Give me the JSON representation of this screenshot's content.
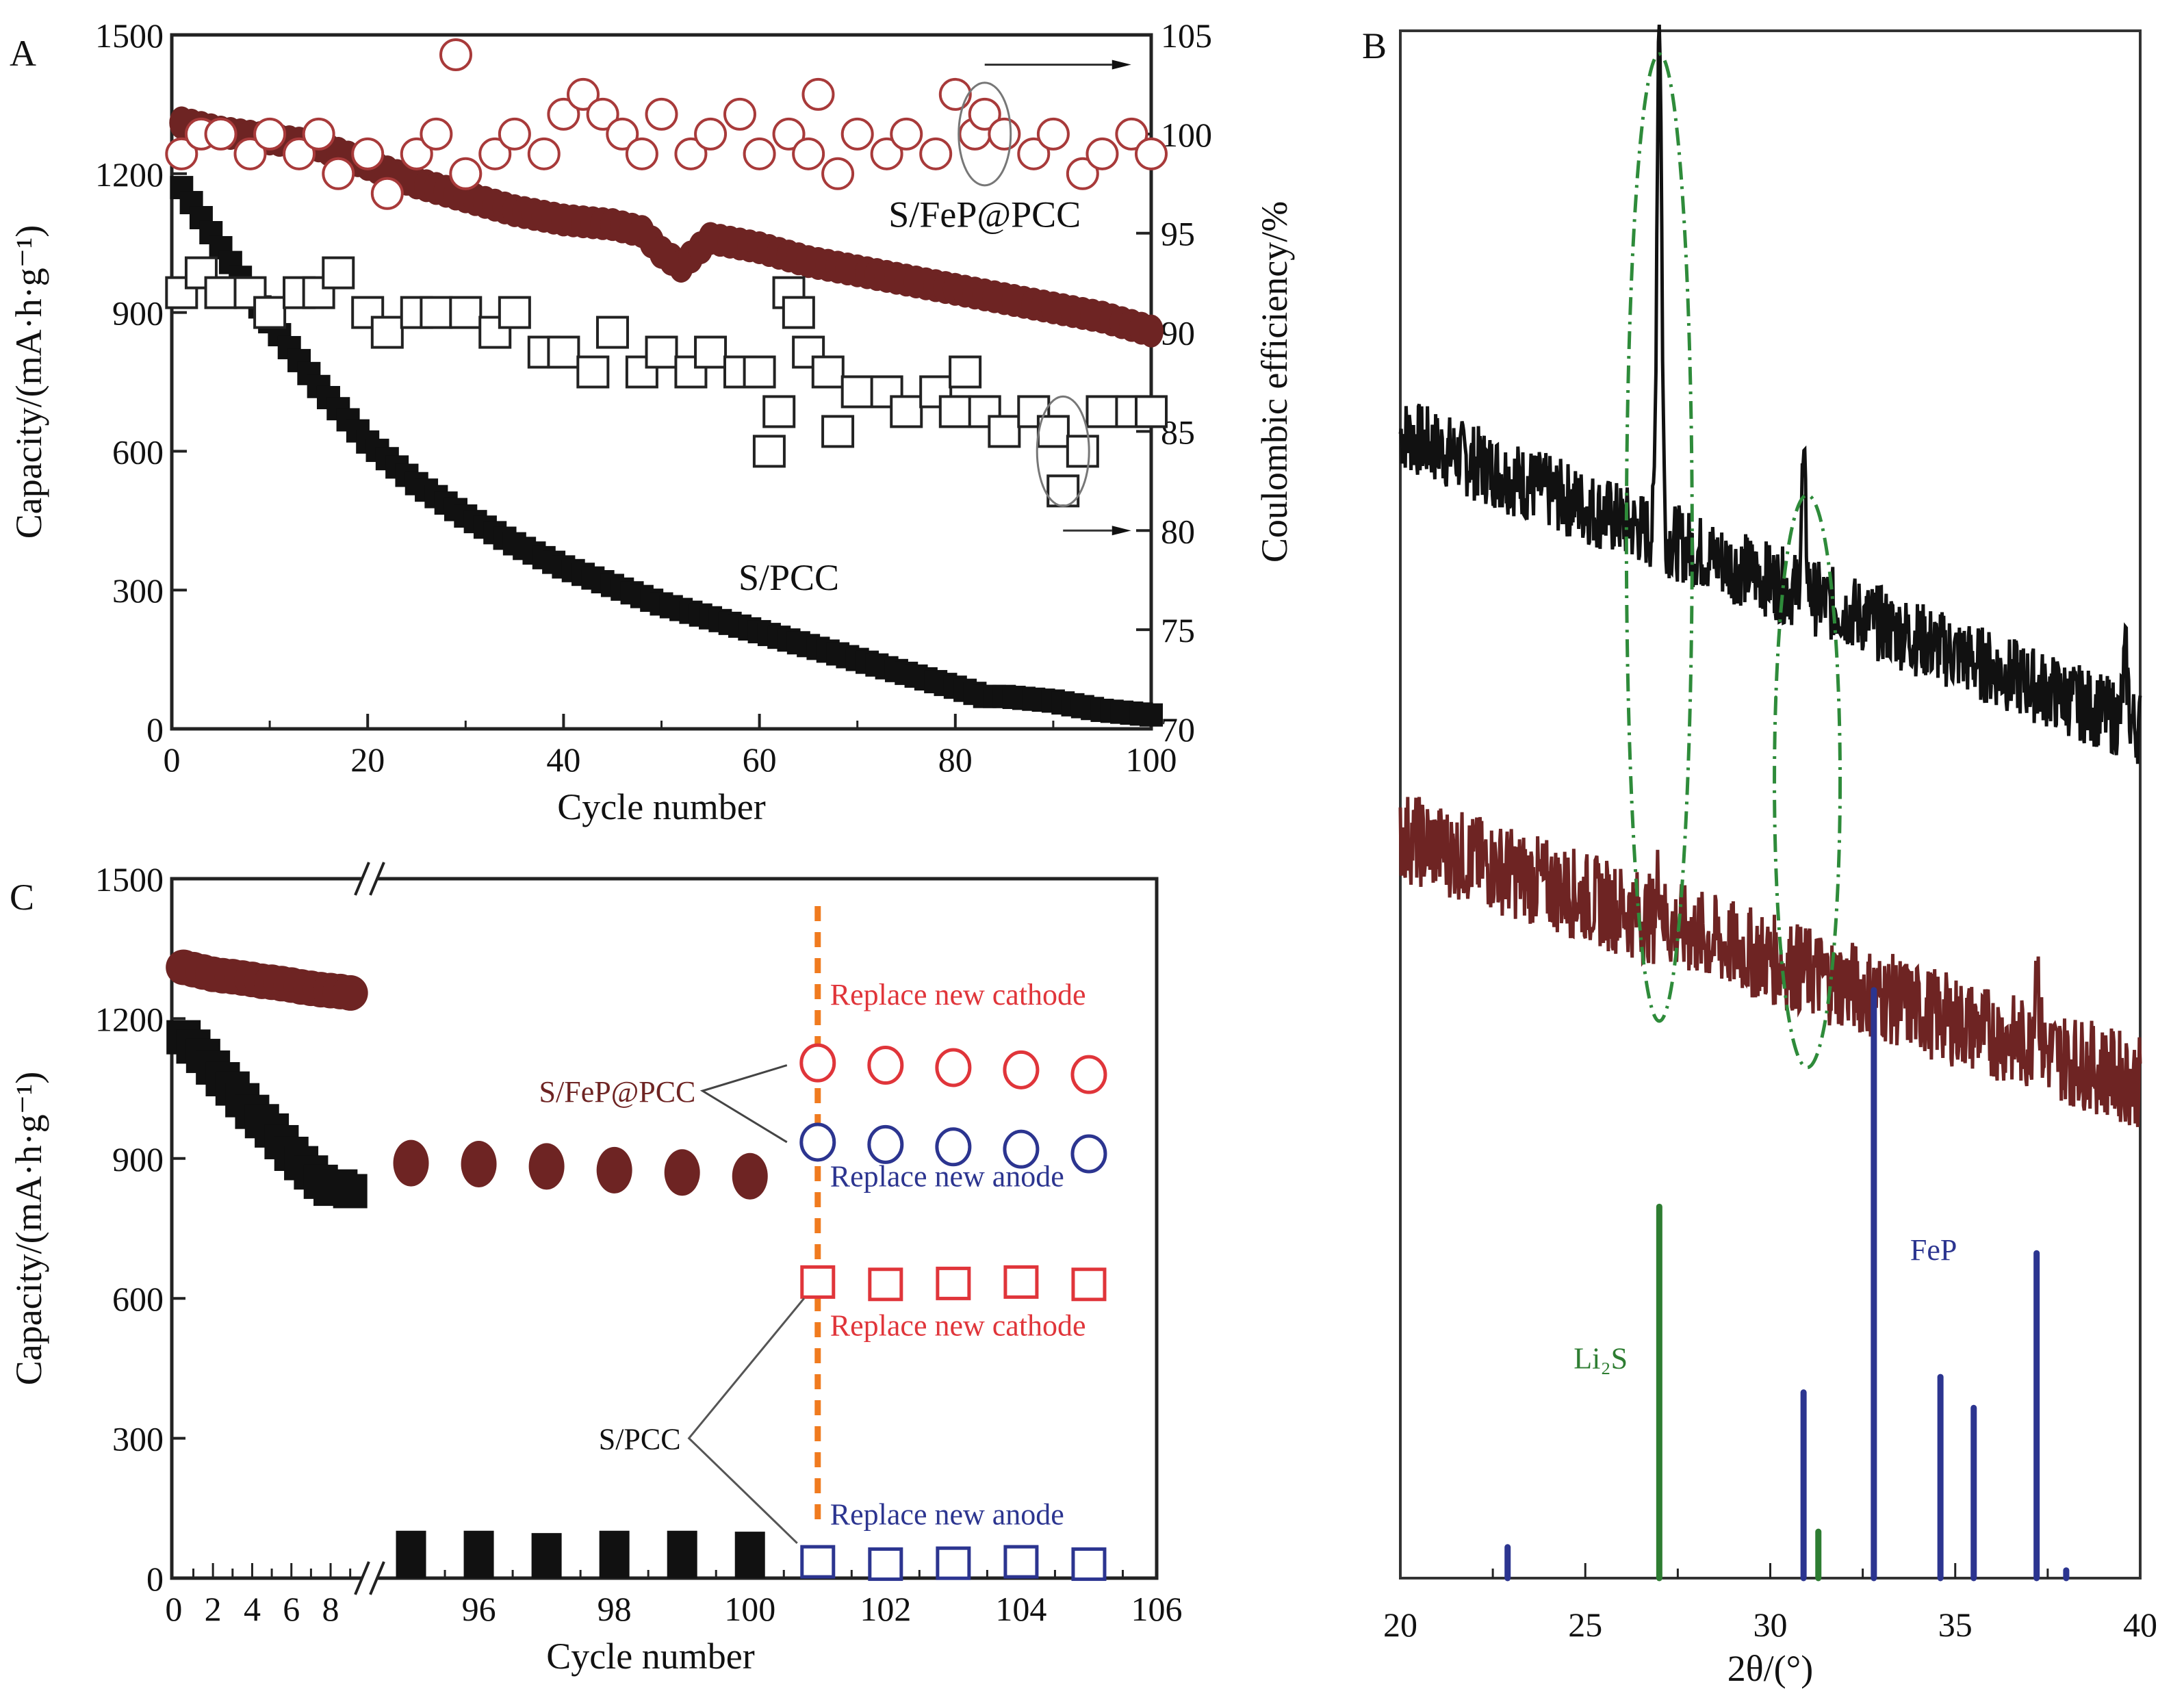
{
  "figure": {
    "panels": [
      "A",
      "B",
      "C"
    ]
  },
  "chart_data": [
    {
      "id": "A",
      "panel_label": "A",
      "type": "scatter",
      "xlabel": "Cycle number",
      "ylabel": "Capacity/(mA·h·g⁻¹)",
      "ylabel_right": "Coulombic efficiency/%",
      "xlim": [
        0,
        100
      ],
      "ylim": [
        0,
        1500
      ],
      "ylim_right": [
        70,
        105
      ],
      "x_ticks": [
        0,
        20,
        40,
        60,
        80,
        100
      ],
      "y_ticks": [
        0,
        300,
        600,
        900,
        1200,
        1500
      ],
      "y_ticks_right": [
        70,
        75,
        80,
        85,
        90,
        95,
        100,
        105
      ],
      "grid": false,
      "annotations": [
        {
          "text": "S/FeP@PCC",
          "color": "#6e2423",
          "x": 83,
          "y": 1085
        },
        {
          "text": "S/PCC",
          "color": "#111111",
          "x": 63,
          "y": 300
        }
      ],
      "series": [
        {
          "name": "S/FeP@PCC capacity",
          "marker": "filled-circle",
          "color": "#6e2423",
          "axis": "left",
          "x": [
            1,
            5,
            10,
            15,
            20,
            25,
            30,
            35,
            40,
            45,
            48,
            50,
            52,
            55,
            60,
            65,
            70,
            75,
            80,
            85,
            90,
            95,
            100
          ],
          "y": [
            1310,
            1290,
            1275,
            1260,
            1220,
            1180,
            1150,
            1120,
            1100,
            1090,
            1075,
            1030,
            1000,
            1060,
            1040,
            1010,
            990,
            970,
            950,
            930,
            910,
            890,
            860
          ]
        },
        {
          "name": "S/PCC capacity",
          "marker": "filled-square",
          "color": "#111111",
          "axis": "left",
          "x": [
            1,
            5,
            10,
            15,
            20,
            25,
            30,
            35,
            40,
            45,
            50,
            55,
            60,
            65,
            70,
            75,
            80,
            83,
            85,
            90,
            95,
            100
          ],
          "y": [
            1170,
            1040,
            880,
            740,
            620,
            530,
            460,
            400,
            350,
            310,
            270,
            240,
            210,
            180,
            150,
            120,
            90,
            70,
            70,
            60,
            40,
            30
          ]
        },
        {
          "name": "S/FeP@PCC coulombic efficiency",
          "marker": "open-circle",
          "color": "#a83a3a",
          "axis": "right",
          "x": [
            1,
            3,
            5,
            8,
            10,
            13,
            15,
            17,
            20,
            22,
            25,
            27,
            29,
            30,
            33,
            35,
            38,
            40,
            42,
            44,
            46,
            48,
            50,
            53,
            55,
            58,
            60,
            63,
            65,
            66,
            68,
            70,
            73,
            75,
            78,
            80,
            82,
            83,
            85,
            88,
            90,
            93,
            95,
            98,
            100
          ],
          "y": [
            99,
            100,
            100,
            99,
            100,
            99,
            100,
            98,
            99,
            97,
            99,
            100,
            104,
            98,
            99,
            100,
            99,
            101,
            102,
            101,
            100,
            99,
            101,
            99,
            100,
            101,
            99,
            100,
            99,
            102,
            98,
            100,
            99,
            100,
            99,
            102,
            100,
            101,
            100,
            99,
            100,
            98,
            99,
            100,
            99
          ]
        },
        {
          "name": "S/PCC coulombic efficiency",
          "marker": "open-square",
          "color": "#222222",
          "axis": "right",
          "x": [
            1,
            3,
            5,
            8,
            10,
            13,
            15,
            17,
            20,
            22,
            25,
            27,
            30,
            33,
            35,
            38,
            40,
            43,
            45,
            48,
            50,
            53,
            55,
            58,
            60,
            61,
            62,
            63,
            64,
            65,
            67,
            68,
            70,
            73,
            75,
            78,
            80,
            81,
            83,
            85,
            88,
            90,
            91,
            93,
            95,
            98,
            100
          ],
          "y": [
            92,
            93,
            92,
            92,
            91,
            92,
            92,
            93,
            91,
            90,
            91,
            91,
            91,
            90,
            91,
            89,
            89,
            88,
            90,
            88,
            89,
            88,
            89,
            88,
            88,
            84,
            86,
            92,
            91,
            89,
            88,
            85,
            87,
            87,
            86,
            87,
            86,
            88,
            86,
            85,
            86,
            85,
            82,
            84,
            86,
            86,
            86
          ],
          "highlight_note": "ellipse with arrow pointing to right axis"
        }
      ]
    },
    {
      "id": "B",
      "panel_label": "B",
      "type": "line",
      "xlabel": "2θ/(°)",
      "xlim": [
        20,
        40
      ],
      "x_ticks": [
        20,
        25,
        30,
        35,
        40
      ],
      "y_ticks": [],
      "grid": false,
      "annotations": [
        {
          "text": "Li₂S",
          "color": "#2e7d32"
        },
        {
          "text": "FeP",
          "color": "#2c3590"
        }
      ],
      "highlight_ellipses": [
        {
          "center_2theta": 27.0,
          "color": "#2e8b3a",
          "style": "dash-dot"
        },
        {
          "center_2theta": 31.0,
          "color": "#2e8b3a",
          "style": "dash-dot"
        }
      ],
      "series": [
        {
          "name": "upper pattern",
          "color": "#111111",
          "baseline_start": 0.74,
          "baseline_end": 0.55,
          "noise": 0.05,
          "peaks": [
            {
              "x": 27.0,
              "height": 0.34
            },
            {
              "x": 30.9,
              "height": 0.08
            },
            {
              "x": 39.6,
              "height": 0.04
            }
          ]
        },
        {
          "name": "lower pattern",
          "color": "#6e2423",
          "baseline_start": 0.48,
          "baseline_end": 0.32,
          "noise": 0.06,
          "peaks": [
            {
              "x": 27.0,
              "height": 0.03
            },
            {
              "x": 37.2,
              "height": 0.06
            }
          ]
        },
        {
          "name": "Li2S reference",
          "color": "#2e7d32",
          "type": "stick",
          "x": [
            27.0,
            31.3
          ],
          "y": [
            0.24,
            0.03
          ]
        },
        {
          "name": "FeP reference",
          "color": "#2c3590",
          "type": "stick",
          "x": [
            22.9,
            30.9,
            32.8,
            34.6,
            35.5,
            37.2,
            38.0
          ],
          "y": [
            0.02,
            0.12,
            0.38,
            0.13,
            0.11,
            0.21,
            0.005
          ]
        }
      ]
    },
    {
      "id": "C",
      "panel_label": "C",
      "type": "scatter",
      "xlabel": "Cycle number",
      "ylabel": "Capacity/(mA·h·g⁻¹)",
      "ylim": [
        0,
        1500
      ],
      "y_ticks": [
        0,
        300,
        600,
        900,
        1200,
        1500
      ],
      "x_ticks_left": [
        0,
        2,
        4,
        6,
        8
      ],
      "x_ticks_right": [
        96,
        98,
        100,
        102,
        104,
        106
      ],
      "axis_break": "between 9 and 95",
      "grid": false,
      "vertical_marker": {
        "x": 101,
        "color": "#f07b1f",
        "style": "dashed"
      },
      "annotations": [
        {
          "text": "Replace new cathode",
          "color": "#e0353a",
          "group": "S/FeP@PCC"
        },
        {
          "text": "Replace new anode",
          "color": "#2c3590",
          "group": "S/FeP@PCC"
        },
        {
          "text": "Replace new cathode",
          "color": "#e0353a",
          "group": "S/PCC"
        },
        {
          "text": "Replace new anode",
          "color": "#2c3590",
          "group": "S/PCC"
        },
        {
          "text": "S/FeP@PCC",
          "color": "#6e2423"
        },
        {
          "text": "S/PCC",
          "color": "#111111"
        }
      ],
      "series": [
        {
          "name": "S/FeP@PCC initial",
          "marker": "filled-circle",
          "color": "#6e2423",
          "x": [
            0.5,
            1,
            1.5,
            2,
            2.5,
            3,
            3.5,
            4,
            4.5,
            5,
            5.5,
            6,
            6.5,
            7,
            7.5,
            8,
            8.5,
            9
          ],
          "y": [
            1310,
            1305,
            1300,
            1295,
            1292,
            1290,
            1287,
            1284,
            1280,
            1278,
            1275,
            1272,
            1268,
            1265,
            1262,
            1260,
            1258,
            1255
          ]
        },
        {
          "name": "S/PCC initial",
          "marker": "filled-square",
          "color": "#111111",
          "x": [
            0.5,
            1,
            1.5,
            2,
            2.5,
            3,
            3.5,
            4,
            4.5,
            5,
            5.5,
            6,
            6.5,
            7,
            7.5,
            8,
            8.5,
            9
          ],
          "y": [
            1160,
            1140,
            1120,
            1095,
            1070,
            1050,
            1025,
            1000,
            980,
            960,
            935,
            910,
            890,
            870,
            850,
            835,
            840,
            830
          ]
        },
        {
          "name": "S/FeP@PCC late",
          "marker": "filled-circle",
          "color": "#6e2423",
          "x": [
            95,
            96,
            97,
            98,
            99,
            100
          ],
          "y": [
            890,
            888,
            883,
            875,
            870,
            862
          ]
        },
        {
          "name": "S/PCC late",
          "marker": "filled-square",
          "color": "#111111",
          "x": [
            95,
            96,
            97,
            98,
            99,
            100
          ],
          "y": [
            40,
            40,
            35,
            40,
            40,
            38
          ]
        },
        {
          "name": "S/FeP@PCC new cathode",
          "marker": "open-circle",
          "color": "#e0353a",
          "x": [
            101,
            102,
            103,
            104,
            105
          ],
          "y": [
            1105,
            1100,
            1095,
            1090,
            1080
          ]
        },
        {
          "name": "S/FeP@PCC new anode",
          "marker": "open-circle",
          "color": "#2c3590",
          "x": [
            101,
            102,
            103,
            104,
            105
          ],
          "y": [
            935,
            930,
            925,
            920,
            910
          ]
        },
        {
          "name": "S/PCC new cathode",
          "marker": "open-square",
          "color": "#e0353a",
          "x": [
            101,
            102,
            103,
            104,
            105
          ],
          "y": [
            635,
            630,
            632,
            635,
            630
          ]
        },
        {
          "name": "S/PCC new anode",
          "marker": "open-square",
          "color": "#2c3590",
          "x": [
            101,
            102,
            103,
            104,
            105
          ],
          "y": [
            35,
            30,
            32,
            35,
            30
          ]
        }
      ]
    }
  ]
}
